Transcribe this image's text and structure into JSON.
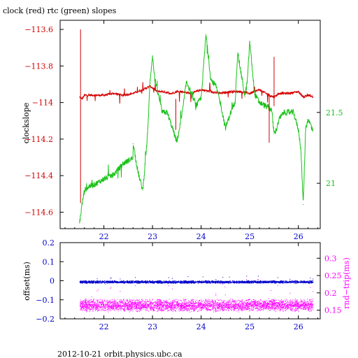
{
  "title": "clock (red) rtc (green) slopes",
  "footer": "2012-10-21  orbit.physics.ubc.ca",
  "colors": {
    "clock": "#d40000",
    "rtc": "#19c219",
    "offset": "#0000cc",
    "rndtrip": "#ff00ff",
    "frame": "#000000"
  },
  "chart_data": [
    {
      "type": "line",
      "title": "clock (red) rtc (green) slopes",
      "xlim": [
        21.1,
        26.45
      ],
      "xticks": [
        22,
        23,
        24,
        25,
        26
      ],
      "xtick_labels": [
        "22",
        "23",
        "24",
        "25",
        "26"
      ],
      "y_left": {
        "label": "clockslope",
        "lim": [
          -114.69,
          -113.55
        ],
        "ticks": [
          -113.6,
          -113.8,
          -114,
          -114.2,
          -114.4,
          -114.6
        ],
        "tick_labels": [
          "−113.6",
          "−113.8",
          "−114",
          "−114.2",
          "−114.4",
          "−114.6"
        ]
      },
      "y_right": {
        "label": "",
        "lim": [
          20.68,
          22.15
        ],
        "ticks": [
          21.5,
          21
        ],
        "tick_labels": [
          "21.5",
          "21"
        ]
      },
      "series": [
        {
          "name": "clock",
          "axis": "left",
          "x": [
            21.5,
            21.55,
            21.6,
            21.8,
            22.0,
            22.2,
            22.4,
            22.6,
            22.8,
            22.95,
            23.0,
            23.1,
            23.2,
            23.4,
            23.5,
            23.6,
            23.8,
            24.0,
            24.2,
            24.4,
            24.6,
            24.8,
            25.0,
            25.2,
            25.4,
            25.5,
            25.6,
            25.8,
            26.0,
            26.1,
            26.2,
            26.3
          ],
          "y": [
            -113.97,
            -113.98,
            -113.96,
            -113.96,
            -113.96,
            -113.95,
            -113.96,
            -113.95,
            -113.93,
            -113.91,
            -113.92,
            -113.94,
            -113.94,
            -113.95,
            -113.94,
            -113.94,
            -113.95,
            -113.93,
            -113.94,
            -113.95,
            -113.94,
            -113.94,
            -113.95,
            -113.93,
            -113.96,
            -113.97,
            -113.95,
            -113.95,
            -113.94,
            -113.97,
            -113.96,
            -113.97
          ]
        },
        {
          "name": "rtc",
          "axis": "right",
          "x": [
            21.5,
            21.55,
            21.6,
            21.7,
            21.8,
            22.0,
            22.2,
            22.4,
            22.6,
            22.6,
            22.7,
            22.8,
            22.9,
            22.95,
            23.0,
            23.05,
            23.15,
            23.2,
            23.3,
            23.4,
            23.5,
            23.6,
            23.7,
            23.8,
            23.9,
            24.0,
            24.1,
            24.2,
            24.3,
            24.4,
            24.5,
            24.6,
            24.7,
            24.75,
            24.85,
            24.9,
            24.95,
            25.0,
            25.1,
            25.2,
            25.3,
            25.45,
            25.5,
            25.55,
            25.6,
            25.7,
            25.8,
            25.9,
            26.0,
            26.05,
            26.1,
            26.15,
            26.2,
            26.3
          ],
          "y": [
            20.72,
            20.85,
            20.95,
            20.98,
            20.99,
            21.03,
            21.06,
            21.14,
            21.18,
            21.28,
            21.08,
            20.95,
            21.35,
            21.73,
            21.9,
            21.72,
            21.58,
            21.5,
            21.5,
            21.4,
            21.29,
            21.47,
            21.72,
            21.63,
            21.55,
            21.6,
            22.05,
            21.73,
            21.69,
            21.56,
            21.39,
            21.49,
            21.58,
            21.92,
            21.72,
            21.61,
            21.72,
            22.0,
            21.63,
            21.57,
            21.55,
            21.52,
            21.35,
            21.38,
            21.45,
            21.5,
            21.5,
            21.5,
            21.38,
            21.25,
            20.85,
            21.39,
            21.45,
            21.38
          ]
        }
      ]
    },
    {
      "type": "scatter",
      "xlim": [
        21.1,
        26.45
      ],
      "xticks": [
        22,
        23,
        24,
        25,
        26
      ],
      "xtick_labels": [
        "22",
        "23",
        "24",
        "25",
        "26"
      ],
      "y_left": {
        "label": "offset(ms)",
        "lim": [
          -0.2,
          0.2
        ],
        "ticks": [
          0.2,
          0.1,
          0,
          -0.1,
          -0.2
        ],
        "tick_labels": [
          "0.2",
          "0.1",
          "0",
          "−0.1",
          "−0.2"
        ]
      },
      "y_right": {
        "label": "rnd−trip(ms)",
        "lim": [
          0.125,
          0.345
        ],
        "ticks": [
          0.3,
          0.25,
          0.2,
          0.15
        ],
        "tick_labels": [
          "0.3",
          "0.25",
          "0.2",
          "0.15"
        ]
      },
      "series": [
        {
          "name": "offset",
          "axis": "left",
          "x_range": [
            21.5,
            26.3
          ],
          "y_center": -0.005,
          "y_spread": 0.008
        },
        {
          "name": "rnd-trip",
          "axis": "right",
          "x_range": [
            21.5,
            26.3
          ],
          "y_center": 0.165,
          "y_spread": 0.015
        }
      ]
    }
  ]
}
